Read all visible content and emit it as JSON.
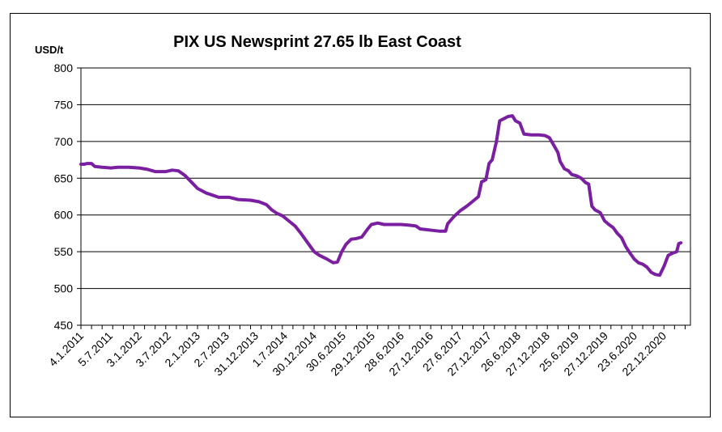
{
  "chart_data": {
    "type": "line",
    "title": "PIX US Newsprint 27.65 lb East Coast",
    "ylabel": "USD/t",
    "xlabel": "",
    "ylim": [
      450,
      800
    ],
    "yticks": [
      450,
      500,
      550,
      600,
      650,
      700,
      750,
      800
    ],
    "grid": true,
    "legend": "none",
    "line_color": "#7b1fa2",
    "x_tick_labels": [
      "4.1.2011",
      "5.7.2011",
      "3.1.2012",
      "3.7.2012",
      "2.1.2013",
      "2.7.2013",
      "31.12.2013",
      "1.7.2014",
      "30.12.2014",
      "30.6.2015",
      "29.12.2015",
      "28.6.2016",
      "27.12.2016",
      "27.6.2017",
      "27.12.2017",
      "26.6.2018",
      "27.12.2018",
      "25.6.2019",
      "27.12.2019",
      "23.6.2020",
      "22.12.2020"
    ],
    "series": [
      {
        "values": [
          [
            0.0,
            669
          ],
          [
            0.3,
            669
          ],
          [
            0.6,
            670
          ],
          [
            1.0,
            670
          ],
          [
            1.3,
            666
          ],
          [
            2.0,
            665
          ],
          [
            2.8,
            664
          ],
          [
            3.5,
            665
          ],
          [
            4.5,
            665
          ],
          [
            5.5,
            664
          ],
          [
            6.3,
            662
          ],
          [
            7.0,
            659
          ],
          [
            8.0,
            659
          ],
          [
            8.6,
            661
          ],
          [
            9.2,
            660
          ],
          [
            9.8,
            654
          ],
          [
            10.4,
            645
          ],
          [
            11.0,
            636
          ],
          [
            11.8,
            630
          ],
          [
            12.4,
            627
          ],
          [
            13.0,
            624
          ],
          [
            14.0,
            624
          ],
          [
            14.8,
            621
          ],
          [
            16.0,
            620
          ],
          [
            16.8,
            618
          ],
          [
            17.5,
            614
          ],
          [
            18.0,
            607
          ],
          [
            18.5,
            602
          ],
          [
            19.0,
            599
          ],
          [
            19.6,
            592
          ],
          [
            20.2,
            585
          ],
          [
            20.8,
            574
          ],
          [
            21.4,
            562
          ],
          [
            22.0,
            550
          ],
          [
            22.5,
            545
          ],
          [
            23.2,
            540
          ],
          [
            23.8,
            535
          ],
          [
            24.2,
            536
          ],
          [
            24.6,
            550
          ],
          [
            25.0,
            560
          ],
          [
            25.5,
            567
          ],
          [
            26.0,
            568
          ],
          [
            26.5,
            570
          ],
          [
            27.0,
            580
          ],
          [
            27.4,
            587
          ],
          [
            28.0,
            589
          ],
          [
            28.6,
            587
          ],
          [
            29.4,
            587
          ],
          [
            30.2,
            587
          ],
          [
            31.0,
            586
          ],
          [
            31.6,
            585
          ],
          [
            32.0,
            581
          ],
          [
            32.6,
            580
          ],
          [
            33.2,
            579
          ],
          [
            33.8,
            578
          ],
          [
            34.4,
            578
          ],
          [
            34.6,
            588
          ],
          [
            35.2,
            598
          ],
          [
            35.8,
            606
          ],
          [
            36.4,
            612
          ],
          [
            37.0,
            619
          ],
          [
            37.5,
            625
          ],
          [
            37.8,
            645
          ],
          [
            38.2,
            648
          ],
          [
            38.5,
            670
          ],
          [
            38.8,
            675
          ],
          [
            39.2,
            700
          ],
          [
            39.5,
            728
          ],
          [
            39.9,
            731
          ],
          [
            40.3,
            734
          ],
          [
            40.7,
            735
          ],
          [
            41.0,
            728
          ],
          [
            41.4,
            725
          ],
          [
            41.8,
            710
          ],
          [
            42.5,
            709
          ],
          [
            43.2,
            709
          ],
          [
            43.8,
            708
          ],
          [
            44.2,
            705
          ],
          [
            44.6,
            695
          ],
          [
            45.0,
            685
          ],
          [
            45.2,
            673
          ],
          [
            45.6,
            663
          ],
          [
            46.0,
            660
          ],
          [
            46.3,
            655
          ],
          [
            46.8,
            653
          ],
          [
            47.2,
            650
          ],
          [
            47.6,
            644
          ],
          [
            47.9,
            642
          ],
          [
            48.2,
            612
          ],
          [
            48.5,
            607
          ],
          [
            49.0,
            603
          ],
          [
            49.4,
            592
          ],
          [
            49.8,
            587
          ],
          [
            50.2,
            583
          ],
          [
            50.6,
            575
          ],
          [
            51.0,
            569
          ],
          [
            51.4,
            557
          ],
          [
            51.8,
            548
          ],
          [
            52.2,
            540
          ],
          [
            52.6,
            535
          ],
          [
            53.0,
            533
          ],
          [
            53.4,
            529
          ],
          [
            53.8,
            522
          ],
          [
            54.2,
            519
          ],
          [
            54.6,
            518
          ],
          [
            55.0,
            530
          ],
          [
            55.4,
            545
          ],
          [
            55.8,
            548
          ],
          [
            56.2,
            550
          ],
          [
            56.4,
            561
          ],
          [
            56.6,
            562
          ]
        ]
      }
    ]
  }
}
